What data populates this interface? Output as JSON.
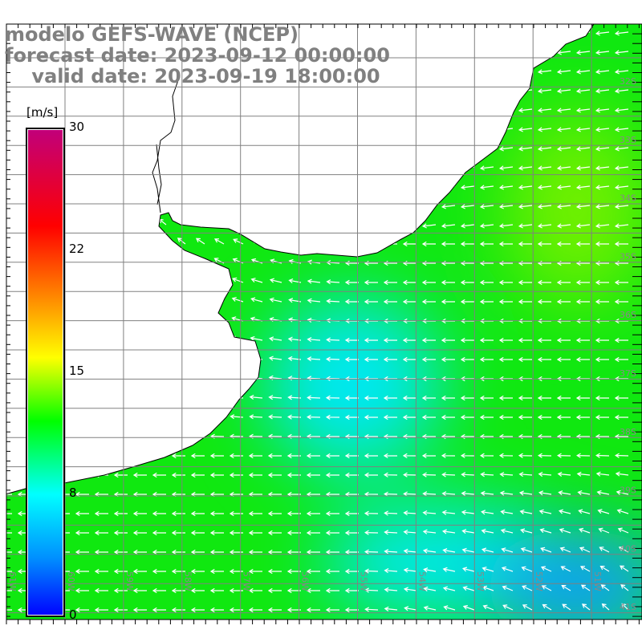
{
  "title": {
    "line1": "modelo GEFS-WAVE (NCEP)",
    "line2": "forecast date: 2023-09-12 00:00:00",
    "line3": "    valid date: 2023-09-19 18:00:00"
  },
  "colorbar": {
    "unit": "[m/s]",
    "ticks": [
      "30",
      "22",
      "15",
      "8",
      "0"
    ],
    "colors": [
      "#c0007c",
      "#ff0000",
      "#ff8c00",
      "#ffff00",
      "#00ff00",
      "#00ffff",
      "#0080ff",
      "#0000ff"
    ]
  },
  "axes": {
    "lon_labels": [
      "61W",
      "60W",
      "59W",
      "58W",
      "57W",
      "56W",
      "55W",
      "54W",
      "53W",
      "52W",
      "51W"
    ],
    "lat_labels": [
      "32S",
      "33S",
      "34S",
      "35S",
      "36S",
      "37S",
      "38S",
      "39S",
      "40S",
      "41S"
    ]
  },
  "field_colors": {
    "base": "#10e810",
    "light_green": "#70f000",
    "cyan": "#00e8f0",
    "blue": "#0aa0f8",
    "land": "#ffffff",
    "grid": "#808080"
  }
}
